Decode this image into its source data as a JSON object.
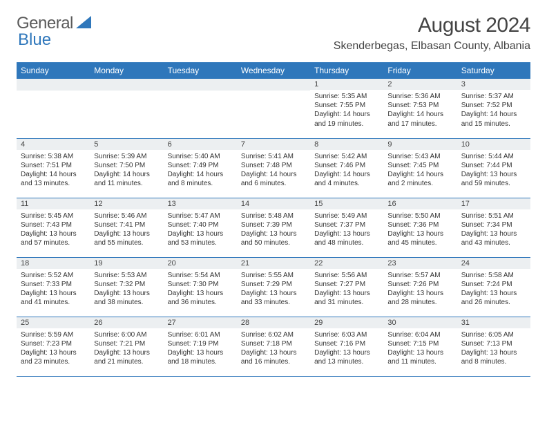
{
  "brand": {
    "text_a": "General",
    "text_b": "Blue"
  },
  "title": "August 2024",
  "location": "Skenderbegas, Elbasan County, Albania",
  "colors": {
    "header_bg": "#2f77bb",
    "daynum_bg": "#eceff1",
    "page_bg": "#ffffff",
    "text": "#333333",
    "title_text": "#444444",
    "brand_gray": "#5a5a5a",
    "brand_blue": "#2f77bb",
    "cell_border": "#2f77bb"
  },
  "typography": {
    "title_pt": 30,
    "location_pt": 16,
    "head_pt": 12,
    "daynum_pt": 11,
    "body_pt": 10
  },
  "weekdays": [
    "Sunday",
    "Monday",
    "Tuesday",
    "Wednesday",
    "Thursday",
    "Friday",
    "Saturday"
  ],
  "first_weekday_index": 4,
  "days": [
    {
      "n": 1,
      "sunrise": "5:35 AM",
      "sunset": "7:55 PM",
      "daylight": "14 hours and 19 minutes."
    },
    {
      "n": 2,
      "sunrise": "5:36 AM",
      "sunset": "7:53 PM",
      "daylight": "14 hours and 17 minutes."
    },
    {
      "n": 3,
      "sunrise": "5:37 AM",
      "sunset": "7:52 PM",
      "daylight": "14 hours and 15 minutes."
    },
    {
      "n": 4,
      "sunrise": "5:38 AM",
      "sunset": "7:51 PM",
      "daylight": "14 hours and 13 minutes."
    },
    {
      "n": 5,
      "sunrise": "5:39 AM",
      "sunset": "7:50 PM",
      "daylight": "14 hours and 11 minutes."
    },
    {
      "n": 6,
      "sunrise": "5:40 AM",
      "sunset": "7:49 PM",
      "daylight": "14 hours and 8 minutes."
    },
    {
      "n": 7,
      "sunrise": "5:41 AM",
      "sunset": "7:48 PM",
      "daylight": "14 hours and 6 minutes."
    },
    {
      "n": 8,
      "sunrise": "5:42 AM",
      "sunset": "7:46 PM",
      "daylight": "14 hours and 4 minutes."
    },
    {
      "n": 9,
      "sunrise": "5:43 AM",
      "sunset": "7:45 PM",
      "daylight": "14 hours and 2 minutes."
    },
    {
      "n": 10,
      "sunrise": "5:44 AM",
      "sunset": "7:44 PM",
      "daylight": "13 hours and 59 minutes."
    },
    {
      "n": 11,
      "sunrise": "5:45 AM",
      "sunset": "7:43 PM",
      "daylight": "13 hours and 57 minutes."
    },
    {
      "n": 12,
      "sunrise": "5:46 AM",
      "sunset": "7:41 PM",
      "daylight": "13 hours and 55 minutes."
    },
    {
      "n": 13,
      "sunrise": "5:47 AM",
      "sunset": "7:40 PM",
      "daylight": "13 hours and 53 minutes."
    },
    {
      "n": 14,
      "sunrise": "5:48 AM",
      "sunset": "7:39 PM",
      "daylight": "13 hours and 50 minutes."
    },
    {
      "n": 15,
      "sunrise": "5:49 AM",
      "sunset": "7:37 PM",
      "daylight": "13 hours and 48 minutes."
    },
    {
      "n": 16,
      "sunrise": "5:50 AM",
      "sunset": "7:36 PM",
      "daylight": "13 hours and 45 minutes."
    },
    {
      "n": 17,
      "sunrise": "5:51 AM",
      "sunset": "7:34 PM",
      "daylight": "13 hours and 43 minutes."
    },
    {
      "n": 18,
      "sunrise": "5:52 AM",
      "sunset": "7:33 PM",
      "daylight": "13 hours and 41 minutes."
    },
    {
      "n": 19,
      "sunrise": "5:53 AM",
      "sunset": "7:32 PM",
      "daylight": "13 hours and 38 minutes."
    },
    {
      "n": 20,
      "sunrise": "5:54 AM",
      "sunset": "7:30 PM",
      "daylight": "13 hours and 36 minutes."
    },
    {
      "n": 21,
      "sunrise": "5:55 AM",
      "sunset": "7:29 PM",
      "daylight": "13 hours and 33 minutes."
    },
    {
      "n": 22,
      "sunrise": "5:56 AM",
      "sunset": "7:27 PM",
      "daylight": "13 hours and 31 minutes."
    },
    {
      "n": 23,
      "sunrise": "5:57 AM",
      "sunset": "7:26 PM",
      "daylight": "13 hours and 28 minutes."
    },
    {
      "n": 24,
      "sunrise": "5:58 AM",
      "sunset": "7:24 PM",
      "daylight": "13 hours and 26 minutes."
    },
    {
      "n": 25,
      "sunrise": "5:59 AM",
      "sunset": "7:23 PM",
      "daylight": "13 hours and 23 minutes."
    },
    {
      "n": 26,
      "sunrise": "6:00 AM",
      "sunset": "7:21 PM",
      "daylight": "13 hours and 21 minutes."
    },
    {
      "n": 27,
      "sunrise": "6:01 AM",
      "sunset": "7:19 PM",
      "daylight": "13 hours and 18 minutes."
    },
    {
      "n": 28,
      "sunrise": "6:02 AM",
      "sunset": "7:18 PM",
      "daylight": "13 hours and 16 minutes."
    },
    {
      "n": 29,
      "sunrise": "6:03 AM",
      "sunset": "7:16 PM",
      "daylight": "13 hours and 13 minutes."
    },
    {
      "n": 30,
      "sunrise": "6:04 AM",
      "sunset": "7:15 PM",
      "daylight": "13 hours and 11 minutes."
    },
    {
      "n": 31,
      "sunrise": "6:05 AM",
      "sunset": "7:13 PM",
      "daylight": "13 hours and 8 minutes."
    }
  ],
  "labels": {
    "sunrise": "Sunrise: ",
    "sunset": "Sunset: ",
    "daylight": "Daylight: "
  }
}
